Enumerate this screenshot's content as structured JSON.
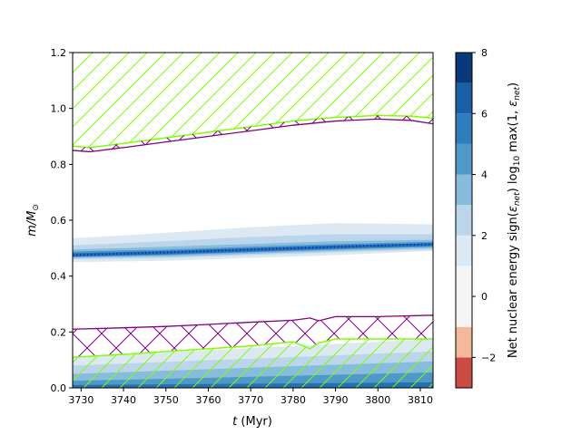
{
  "chart_data": {
    "type": "area",
    "xlabel": "t (Myr)",
    "xlabel_italic": "t",
    "xlabel_rest": " (Myr)",
    "ylabel": "m/M⊙",
    "ylabel_main": "m/M",
    "ylabel_sub": "⊙",
    "xlim": [
      3728,
      3813
    ],
    "ylim": [
      0.0,
      1.2
    ],
    "x_ticks": [
      3730,
      3740,
      3750,
      3760,
      3770,
      3780,
      3790,
      3800,
      3810
    ],
    "y_ticks": [
      0.0,
      0.2,
      0.4,
      0.6,
      0.8,
      1.0,
      1.2
    ],
    "y_tick_labels": [
      "0.0",
      "0.2",
      "0.4",
      "0.6",
      "0.8",
      "1.0",
      "1.2"
    ],
    "hatch_colors": {
      "convective": "#7fff00",
      "overshoot": "#800080"
    },
    "convective_envelope": {
      "x": [
        3728,
        3732,
        3740,
        3750,
        3760,
        3770,
        3780,
        3790,
        3800,
        3808,
        3813
      ],
      "y_bottom": [
        0.865,
        0.86,
        0.875,
        0.895,
        0.915,
        0.935,
        0.955,
        0.968,
        0.975,
        0.972,
        0.965
      ],
      "y_top": [
        1.2,
        1.2,
        1.2,
        1.2,
        1.2,
        1.2,
        1.2,
        1.2,
        1.2,
        1.2,
        1.2
      ]
    },
    "envelope_overshoot_boundary": {
      "x": [
        3728,
        3732,
        3740,
        3750,
        3760,
        3770,
        3780,
        3790,
        3800,
        3808,
        3813
      ],
      "y": [
        0.85,
        0.845,
        0.86,
        0.88,
        0.9,
        0.92,
        0.94,
        0.955,
        0.962,
        0.957,
        0.945
      ]
    },
    "core_overshoot_region": {
      "x": [
        3728,
        3740,
        3750,
        3760,
        3770,
        3780,
        3784,
        3786,
        3790,
        3800,
        3813
      ],
      "y_bottom": [
        0.11,
        0.12,
        0.13,
        0.14,
        0.15,
        0.165,
        0.14,
        0.16,
        0.175,
        0.175,
        0.175
      ],
      "y_top": [
        0.21,
        0.215,
        0.22,
        0.227,
        0.235,
        0.242,
        0.25,
        0.24,
        0.255,
        0.255,
        0.26
      ]
    },
    "convective_core": {
      "x": [
        3728,
        3740,
        3750,
        3760,
        3770,
        3780,
        3784,
        3786,
        3790,
        3800,
        3813
      ],
      "y_bottom": [
        0,
        0,
        0,
        0,
        0,
        0,
        0,
        0,
        0,
        0,
        0
      ],
      "y_top": [
        0.11,
        0.12,
        0.13,
        0.14,
        0.15,
        0.165,
        0.14,
        0.16,
        0.175,
        0.175,
        0.175
      ]
    },
    "burning_shell": {
      "x": [
        3728,
        3750,
        3770,
        3790,
        3813
      ],
      "center": [
        0.475,
        0.485,
        0.495,
        0.505,
        0.515
      ],
      "bands": [
        {
          "level": 1,
          "color": "#dce9f3",
          "lo": [
            0.45,
            0.455,
            0.465,
            0.475,
            0.49
          ],
          "hi": [
            0.535,
            0.555,
            0.575,
            0.59,
            0.585
          ]
        },
        {
          "level": 2,
          "color": "#bbd6eb",
          "lo": [
            0.46,
            0.465,
            0.475,
            0.485,
            0.495
          ],
          "hi": [
            0.51,
            0.525,
            0.54,
            0.55,
            0.55
          ]
        },
        {
          "level": 3,
          "color": "#88bcdd",
          "lo": [
            0.465,
            0.47,
            0.48,
            0.49,
            0.5
          ],
          "hi": [
            0.495,
            0.505,
            0.515,
            0.525,
            0.53
          ]
        },
        {
          "level": 4,
          "color": "#4f98c8",
          "lo": [
            0.468,
            0.475,
            0.485,
            0.495,
            0.505
          ],
          "hi": [
            0.488,
            0.495,
            0.505,
            0.515,
            0.523
          ]
        },
        {
          "level": 5,
          "color": "#2670b0",
          "lo": [
            0.47,
            0.478,
            0.488,
            0.498,
            0.508
          ],
          "hi": [
            0.482,
            0.49,
            0.5,
            0.51,
            0.518
          ]
        }
      ]
    },
    "core_burning": {
      "x": [
        3728,
        3813
      ],
      "bands": [
        {
          "level": 1,
          "color": "#dce9f3",
          "hi": [
            0.11,
            0.175
          ]
        },
        {
          "level": 2,
          "color": "#bbd6eb",
          "hi": [
            0.08,
            0.13
          ]
        },
        {
          "level": 3,
          "color": "#88bcdd",
          "hi": [
            0.05,
            0.095
          ]
        },
        {
          "level": 4,
          "color": "#4f98c8",
          "hi": [
            0.025,
            0.055
          ]
        },
        {
          "level": 5,
          "color": "#2670b0",
          "hi": [
            0.01,
            0.02
          ]
        }
      ]
    },
    "colorbar": {
      "label": "Net nuclear energy sign(ε_net) log10 max(1, ε_net)",
      "label_parts": [
        "Net nuclear energy sign(",
        "ε",
        "net",
        ") log",
        "10",
        " max(1, ",
        "ε",
        "net",
        ")"
      ],
      "range": [
        -3,
        8
      ],
      "ticks": [
        -2,
        0,
        2,
        4,
        6,
        8
      ],
      "tick_labels": [
        "−2",
        "0",
        "2",
        "4",
        "6",
        "8"
      ],
      "levels": [
        {
          "from": -3,
          "to": -2,
          "color": "#cb4a42"
        },
        {
          "from": -2,
          "to": -1,
          "color": "#f4b99b"
        },
        {
          "from": -1,
          "to": 1,
          "color": "#f5f5f5"
        },
        {
          "from": 1,
          "to": 2,
          "color": "#dce9f3"
        },
        {
          "from": 2,
          "to": 3,
          "color": "#bbd6eb"
        },
        {
          "from": 3,
          "to": 4,
          "color": "#88bcdd"
        },
        {
          "from": 4,
          "to": 5,
          "color": "#4f98c8"
        },
        {
          "from": 5,
          "to": 6,
          "color": "#2e7dbc"
        },
        {
          "from": 6,
          "to": 7,
          "color": "#1a5ea8"
        },
        {
          "from": 7,
          "to": 8,
          "color": "#083a7a"
        }
      ]
    }
  }
}
